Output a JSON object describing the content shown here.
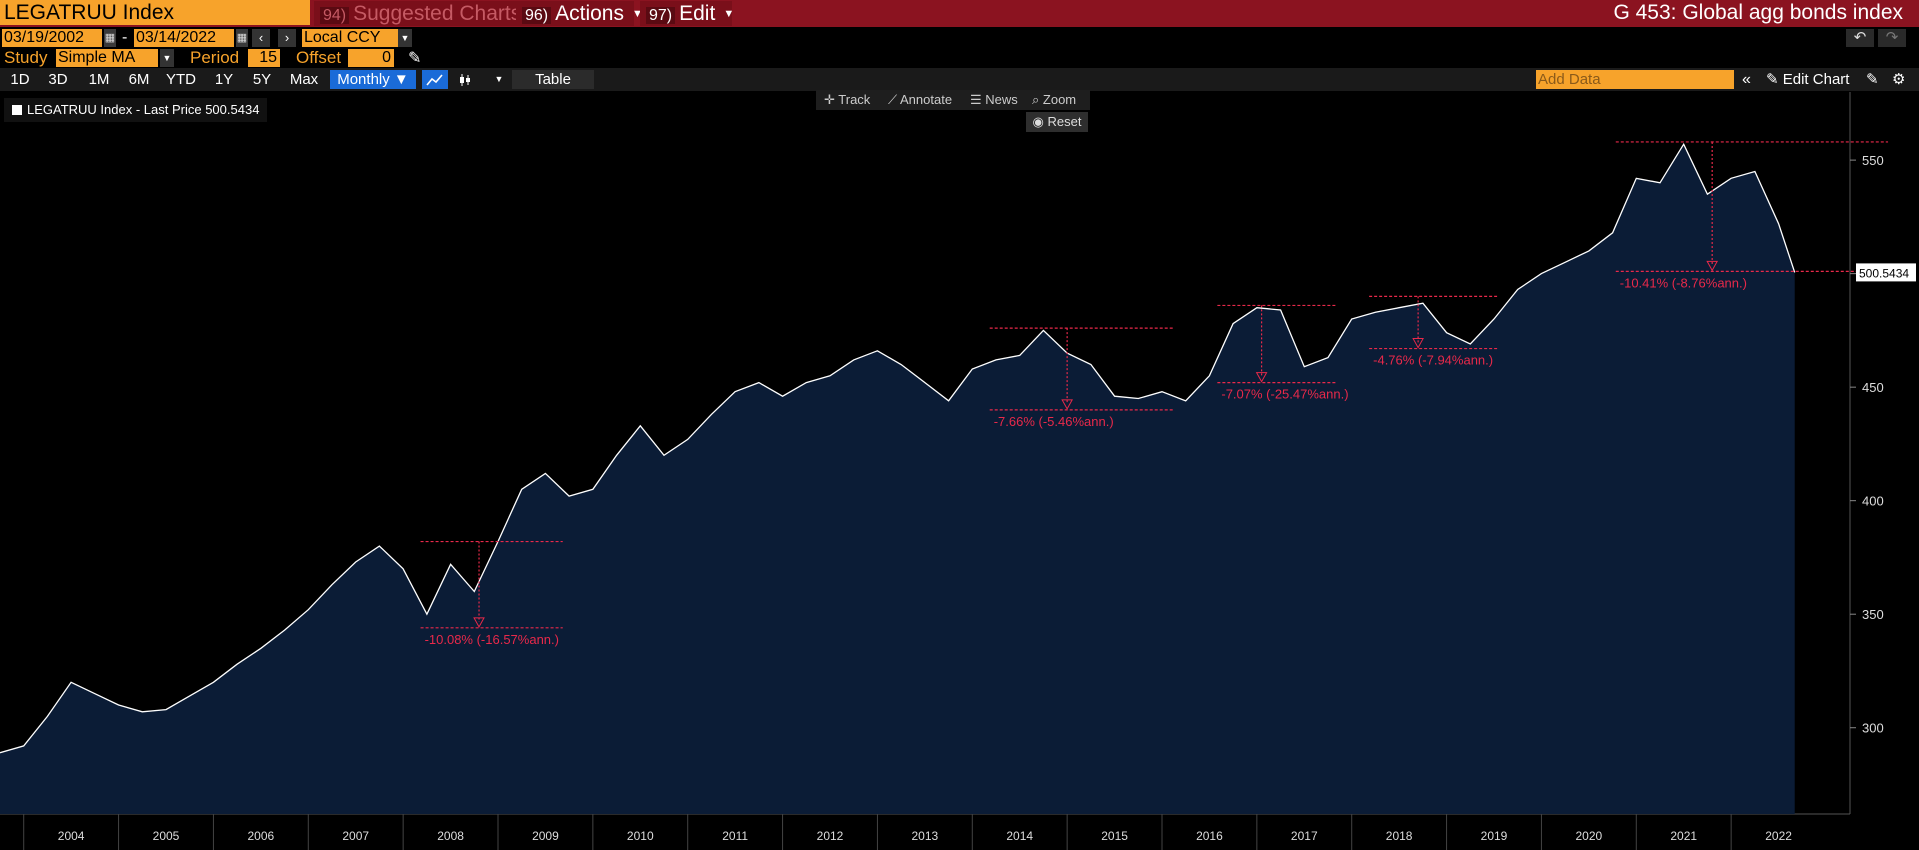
{
  "header": {
    "ticker": "LEGATRUU Index",
    "menus": [
      {
        "num": "94)",
        "label": "Suggested Charts",
        "enabled": false
      },
      {
        "num": "96)",
        "label": "Actions",
        "enabled": true
      },
      {
        "num": "97)",
        "label": "Edit",
        "enabled": true
      }
    ],
    "title": "G 453: Global agg bonds index"
  },
  "dates": {
    "start": "03/19/2002",
    "end": "03/14/2022",
    "separator": "-",
    "currency": "Local CCY"
  },
  "study": {
    "label": "Study",
    "value": "Simple MA",
    "period_label": "Period",
    "period": "15",
    "offset_label": "Offset",
    "offset": "0"
  },
  "toolbar": {
    "timeframes": [
      "1D",
      "3D",
      "1M",
      "6M",
      "YTD",
      "1Y",
      "5Y",
      "Max"
    ],
    "frequency": "Monthly ▼",
    "table_label": "Table",
    "add_data_placeholder": "Add Data",
    "edit_chart_label": "Edit Chart"
  },
  "chart_tools": {
    "track": "Track",
    "annotate": "Annotate",
    "news": "News",
    "zoom": "Zoom",
    "reset": "Reset"
  },
  "legend": {
    "text": "LEGATRUU Index - Last Price 500.5434"
  },
  "colors": {
    "title_bar": "#8b1320",
    "input": "#f7a32b",
    "area_fill": "#0b1c36",
    "line": "#ffffff",
    "annotation": "#e8294a",
    "active": "#1a6bd8"
  },
  "chart_data": {
    "type": "area",
    "series": [
      {
        "name": "LEGATRUU Index",
        "x": [
          2003.25,
          2003.5,
          2003.75,
          2004.0,
          2004.25,
          2004.5,
          2004.75,
          2005.0,
          2005.25,
          2005.5,
          2005.75,
          2006.0,
          2006.25,
          2006.5,
          2006.75,
          2007.0,
          2007.25,
          2007.5,
          2007.75,
          2008.0,
          2008.25,
          2008.5,
          2008.75,
          2009.0,
          2009.25,
          2009.5,
          2009.75,
          2010.0,
          2010.25,
          2010.5,
          2010.75,
          2011.0,
          2011.25,
          2011.5,
          2011.75,
          2012.0,
          2012.25,
          2012.5,
          2012.75,
          2013.0,
          2013.25,
          2013.5,
          2013.75,
          2014.0,
          2014.25,
          2014.5,
          2014.75,
          2015.0,
          2015.25,
          2015.5,
          2015.75,
          2016.0,
          2016.25,
          2016.5,
          2016.75,
          2017.0,
          2017.25,
          2017.5,
          2017.75,
          2018.0,
          2018.25,
          2018.5,
          2018.75,
          2019.0,
          2019.25,
          2019.5,
          2019.75,
          2020.0,
          2020.25,
          2020.5,
          2020.75,
          2021.0,
          2021.25,
          2021.5,
          2021.75,
          2022.0,
          2022.17
        ],
        "values": [
          289,
          292,
          305,
          320,
          315,
          310,
          307,
          308,
          314,
          320,
          328,
          335,
          343,
          352,
          363,
          373,
          380,
          370,
          350,
          372,
          360,
          382,
          405,
          412,
          402,
          405,
          420,
          433,
          420,
          427,
          438,
          448,
          452,
          446,
          452,
          455,
          462,
          466,
          460,
          452,
          444,
          458,
          462,
          464,
          475,
          465,
          460,
          446,
          445,
          448,
          444,
          455,
          478,
          485,
          484,
          459,
          463,
          480,
          483,
          485,
          487,
          474,
          469,
          480,
          493,
          500,
          505,
          510,
          518,
          542,
          540,
          557,
          535,
          542,
          545,
          522,
          500.5434
        ]
      }
    ],
    "last_price": "500.5434",
    "y_ticks": [
      "550",
      "500",
      "450",
      "400",
      "350",
      "300"
    ],
    "ylim": [
      262,
      580
    ],
    "x_ticks": [
      "2004",
      "2005",
      "2006",
      "2007",
      "2008",
      "2009",
      "2010",
      "2011",
      "2012",
      "2013",
      "2014",
      "2015",
      "2016",
      "2017",
      "2018",
      "2019",
      "2020",
      "2021",
      "2022"
    ],
    "drawdowns": [
      {
        "label": "-10.08% (-16.57%ann.)",
        "peak_x": 2008.0,
        "peak_y": 382,
        "trough_x": 2008.55,
        "trough_y": 344
      },
      {
        "label": "-7.66% (-5.46%ann.)",
        "peak_x": 2014.0,
        "peak_y": 476,
        "trough_x": 2015.0,
        "trough_y": 440
      },
      {
        "label": "-7.07% (-25.47%ann.)",
        "peak_x": 2016.4,
        "peak_y": 486,
        "trough_x": 2016.7,
        "trough_y": 452
      },
      {
        "label": "-4.76% (-7.94%ann.)",
        "peak_x": 2018.0,
        "peak_y": 490,
        "trough_x": 2018.4,
        "trough_y": 467
      },
      {
        "label": "-10.41% (-8.76%ann.)",
        "peak_x": 2020.6,
        "peak_y": 558,
        "trough_x": 2022.1,
        "trough_y": 501
      }
    ]
  }
}
